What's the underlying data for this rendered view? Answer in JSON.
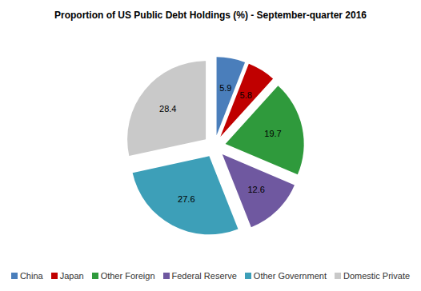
{
  "chart_data": {
    "type": "pie",
    "title": "Proportion of US Public Debt Holdings (%) - September-quarter 2016",
    "categories": [
      "China",
      "Japan",
      "Other Foreign",
      "Federal Reserve",
      "Other Government",
      "Domestic Private"
    ],
    "values": [
      5.9,
      5.8,
      19.7,
      12.6,
      27.6,
      28.4
    ],
    "colors": [
      "#4a7ebb",
      "#c00000",
      "#2f9a3c",
      "#6f58a0",
      "#3d9fb8",
      "#c9c9c9"
    ],
    "data_labels": true,
    "legend": "bottom"
  }
}
